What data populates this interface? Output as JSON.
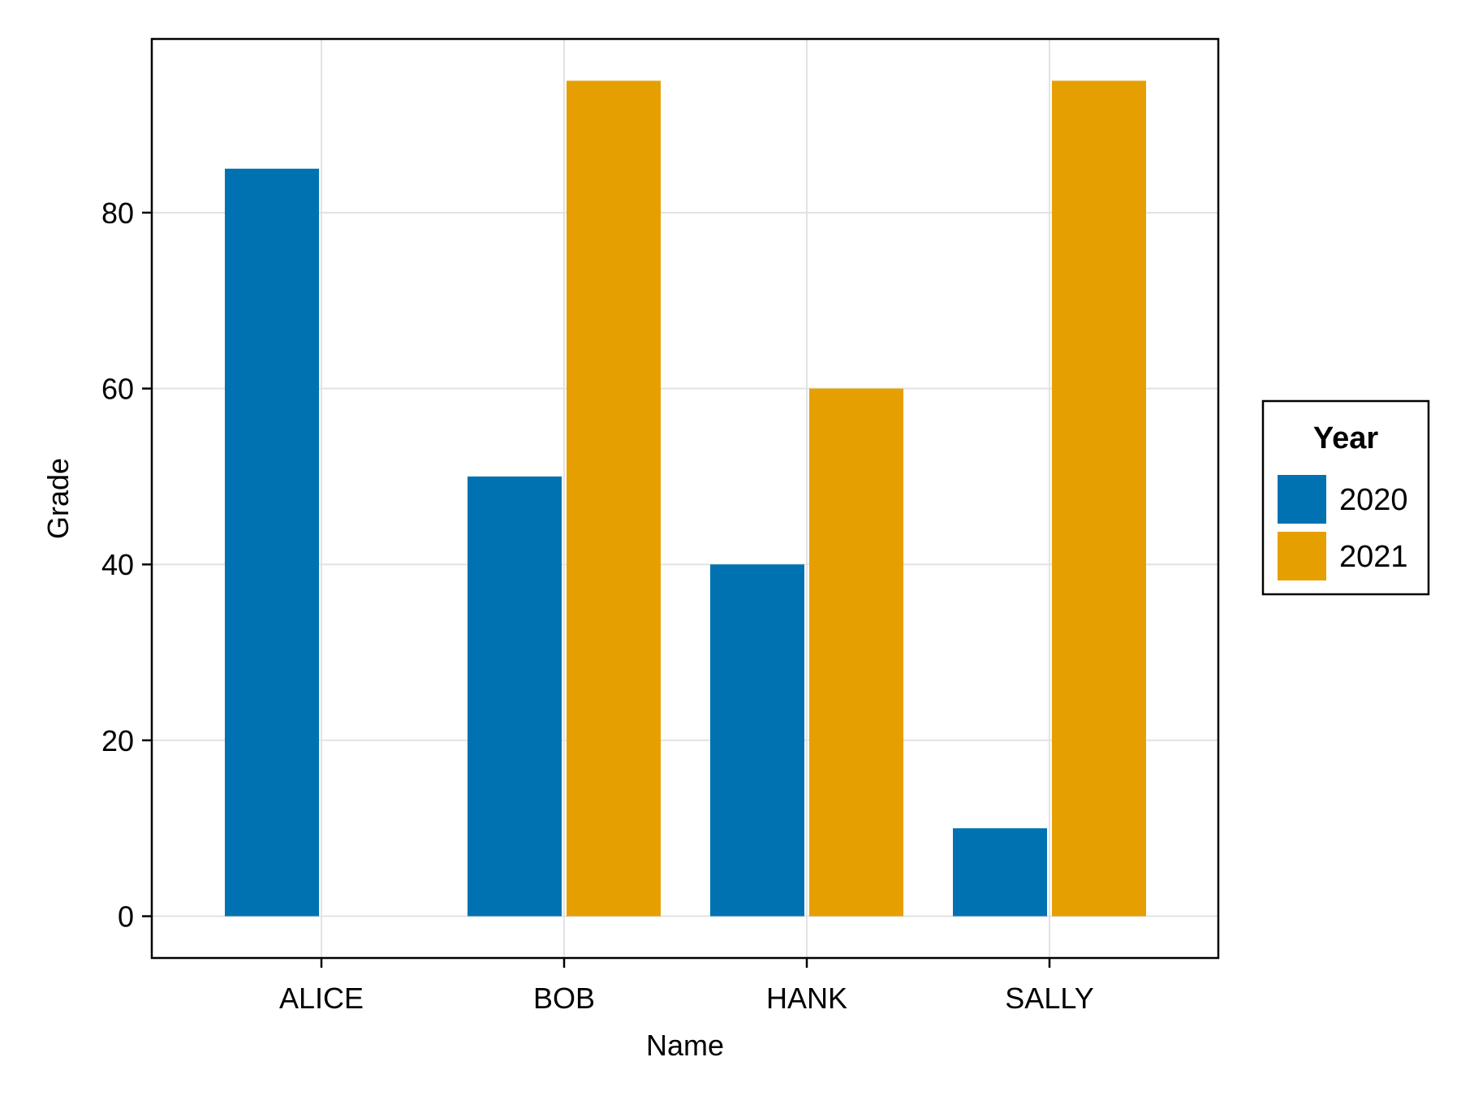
{
  "chart_data": {
    "type": "bar",
    "title": "",
    "xlabel": "Name",
    "ylabel": "Grade",
    "categories": [
      "ALICE",
      "BOB",
      "HANK",
      "SALLY"
    ],
    "series": [
      {
        "name": "2020",
        "values": [
          85,
          50,
          40,
          10
        ],
        "color": "#0072b2"
      },
      {
        "name": "2021",
        "values": [
          0,
          95,
          60,
          95
        ],
        "color": "#e69f00"
      }
    ],
    "ylim": [
      -4.75,
      99.75
    ],
    "yticks": [
      0,
      20,
      40,
      60,
      80
    ],
    "grid": true,
    "legend": {
      "title": "Year",
      "placement": "right"
    }
  }
}
